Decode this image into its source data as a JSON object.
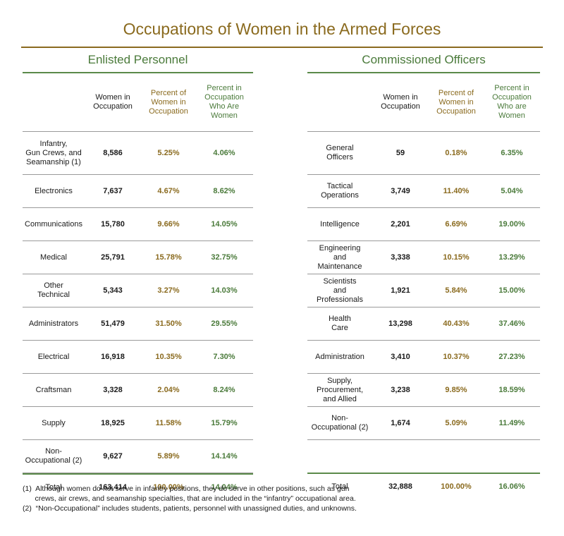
{
  "title": "Occupations of Women in the Armed Forces",
  "enlisted": {
    "title": "Enlisted Personnel",
    "headers": [
      "",
      "Women in\nOccupation",
      "Percent of\nWomen in\nOccupation",
      "Percent in\nOccupation\nWho Are\nWomen"
    ],
    "rows": [
      [
        "Infantry,\nGun Crews, and\nSeamanship (1)",
        "8,586",
        "5.25%",
        "4.06%"
      ],
      [
        "Electronics",
        "7,637",
        "4.67%",
        "8.62%"
      ],
      [
        "Communications",
        "15,780",
        "9.66%",
        "14.05%"
      ],
      [
        "Medical",
        "25,791",
        "15.78%",
        "32.75%"
      ],
      [
        "Other\nTechnical",
        "5,343",
        "3.27%",
        "14.03%"
      ],
      [
        "Administrators",
        "51,479",
        "31.50%",
        "29.55%"
      ],
      [
        "Electrical",
        "16,918",
        "10.35%",
        "7.30%"
      ],
      [
        "Craftsman",
        "3,328",
        "2.04%",
        "8.24%"
      ],
      [
        "Supply",
        "18,925",
        "11.58%",
        "15.79%"
      ],
      [
        "Non-\nOccupational (2)",
        "9,627",
        "5.89%",
        "14.14%"
      ]
    ],
    "total": [
      "Total",
      "163,414",
      "100.00%",
      "14.04%"
    ]
  },
  "officers": {
    "title": "Commissioned Officers",
    "headers": [
      "",
      "Women in\nOccupation",
      "Percent of\nWomen in\nOccupation",
      "Percent in\nOccupation\nWho are\nWomen"
    ],
    "rows": [
      [
        "General\nOfficers",
        "59",
        "0.18%",
        "6.35%"
      ],
      [
        "Tactical\nOperations",
        "3,749",
        "11.40%",
        "5.04%"
      ],
      [
        "Intelligence",
        "2,201",
        "6.69%",
        "19.00%"
      ],
      [
        "Engineering\nand\nMaintenance",
        "3,338",
        "10.15%",
        "13.29%"
      ],
      [
        "Scientists\nand\nProfessionals",
        "1,921",
        "5.84%",
        "15.00%"
      ],
      [
        "Health\nCare",
        "13,298",
        "40.43%",
        "37.46%"
      ],
      [
        "Administration",
        "3,410",
        "10.37%",
        "27.23%"
      ],
      [
        "Supply,\nProcurement,\nand Allied",
        "3,238",
        "9.85%",
        "18.59%"
      ],
      [
        "Non-\nOccupational (2)",
        "1,674",
        "5.09%",
        "11.49%"
      ]
    ],
    "total": [
      "Total",
      "32,888",
      "100.00%",
      "16.06%"
    ]
  },
  "footnotes": [
    "(1)  Although women do not serve in infantry positions, they do serve in other positions, such as gun\n      crews, air crews, and seamanship specialties, that are included in the “infantry” occupational area.",
    "(2)  “Non-Occupational” includes students, patients, personnel with unassigned duties, and unknowns."
  ],
  "colors": {
    "gold": "#8a6a1e",
    "green": "#4a7a3a",
    "rule_green": "#5b8a4a"
  }
}
